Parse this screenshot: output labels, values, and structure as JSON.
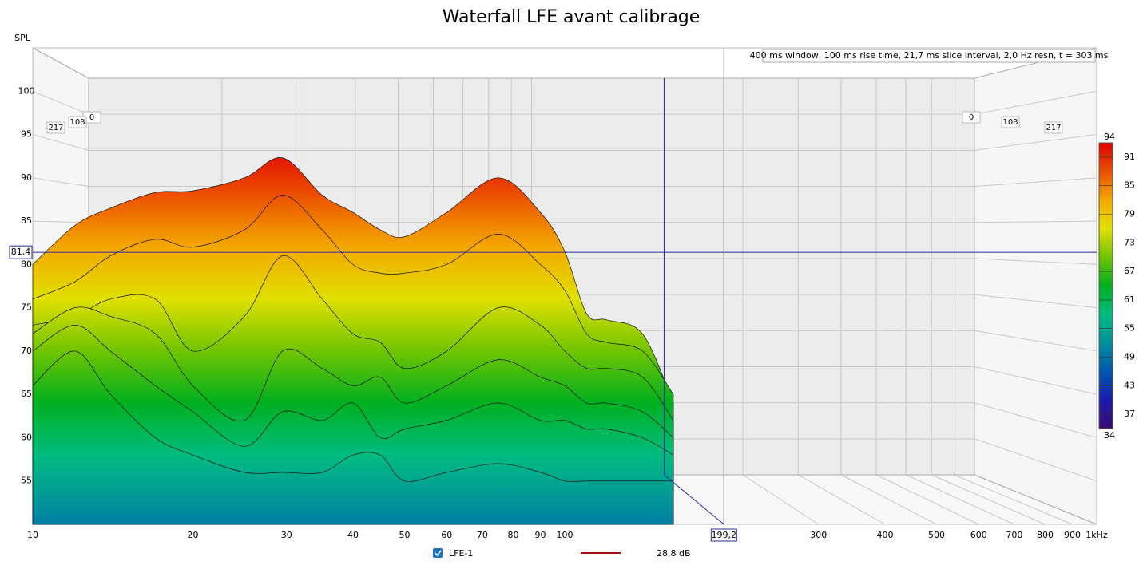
{
  "chart_data": {
    "type": "waterfall",
    "title": "Waterfall LFE avant calibrage",
    "y_label": "SPL",
    "annotation": "400 ms window, 100 ms rise time, 21,7 ms slice interval, 2,0 Hz resn, t = 303 ms",
    "log_x": true,
    "grid": true,
    "xlim": [
      10,
      1000
    ],
    "xticks": [
      10,
      20,
      30,
      40,
      50,
      60,
      70,
      80,
      90,
      100,
      300,
      400,
      500,
      600,
      700,
      800,
      900,
      {
        "value": 1000,
        "label": "1kHz"
      }
    ],
    "ylim": [
      50,
      105
    ],
    "yticks": [
      55,
      60,
      65,
      70,
      75,
      80,
      85,
      90,
      95,
      100
    ],
    "zticks": [
      0,
      108,
      217
    ],
    "x": [
      10,
      12,
      14,
      17,
      20,
      25,
      29.5,
      35,
      40,
      45,
      50,
      60,
      75,
      90,
      100,
      110,
      120,
      140,
      160
    ],
    "slices": [
      {
        "values": [
          80,
          84.5,
          86.5,
          88.3,
          88.5,
          90,
          92.3,
          88,
          86,
          84,
          83.2,
          86,
          90,
          86,
          81.5,
          74.3,
          73.6,
          72,
          64
        ]
      },
      {
        "values": [
          76,
          78,
          81,
          82.9,
          82,
          84,
          88,
          84,
          80,
          79,
          79,
          80,
          83.5,
          80,
          77,
          72,
          71,
          70,
          65
        ]
      },
      {
        "values": [
          73,
          74,
          76,
          76,
          70,
          74,
          81,
          76,
          72,
          71,
          68,
          70,
          75,
          73,
          70,
          68,
          68,
          67,
          62
        ]
      },
      {
        "values": [
          72,
          75,
          74,
          72,
          66,
          62,
          70,
          68,
          66,
          67,
          64,
          66,
          69,
          67,
          66,
          64,
          64,
          63,
          60
        ]
      },
      {
        "values": [
          70,
          73,
          70,
          66,
          63,
          59,
          63,
          62,
          64,
          60,
          61,
          62,
          64,
          62,
          62,
          61,
          61,
          60,
          58
        ]
      },
      {
        "values": [
          66,
          70,
          65,
          60,
          58,
          56,
          56,
          56,
          58,
          58,
          55,
          56,
          57,
          56,
          55,
          55,
          55,
          55,
          55
        ]
      }
    ],
    "color_scale": {
      "range": [
        34,
        94
      ],
      "ticks": [
        37,
        43,
        49,
        55,
        61,
        67,
        73,
        79,
        85,
        91
      ],
      "colors": [
        "#3a0a70",
        "#1a1ab0",
        "#0058b0",
        "#00909c",
        "#00bc80",
        "#00b020",
        "#70c400",
        "#e0e000",
        "#f4a800",
        "#ec5000",
        "#e00000"
      ]
    },
    "cursor_y": {
      "value": 81.4,
      "label": "81,4"
    },
    "cursor_x": {
      "value": 199.2,
      "label": "199,2"
    },
    "legend": {
      "name": "LFE-1",
      "level": "28,8 dB",
      "color": "#a01010"
    }
  }
}
